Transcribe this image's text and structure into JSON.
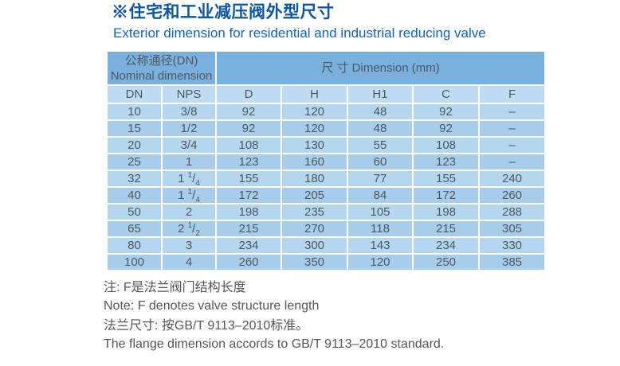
{
  "header": {
    "title_zh": "※住宅和工业减压阀外型尺寸",
    "title_en": "Exterior dimension for residential and industrial reducing valve"
  },
  "table": {
    "group_headers": {
      "nominal_zh": "公称通径(DN)",
      "nominal_en": "Nominal dimension",
      "dimension": "尺 寸 Dimension  (mm)"
    },
    "columns": [
      "DN",
      "NPS",
      "D",
      "H",
      "H1",
      "C",
      "F"
    ],
    "rows": [
      [
        "10",
        "3/8",
        "92",
        "120",
        "48",
        "92",
        "–"
      ],
      [
        "15",
        "1/2",
        "92",
        "120",
        "48",
        "92",
        "–"
      ],
      [
        "20",
        "3/4",
        "108",
        "130",
        "55",
        "108",
        "–"
      ],
      [
        "25",
        "1",
        "123",
        "160",
        "60",
        "123",
        "–"
      ],
      [
        "32",
        "1 1/4",
        "155",
        "180",
        "77",
        "155",
        "240"
      ],
      [
        "40",
        "1 1/4",
        "172",
        "205",
        "84",
        "172",
        "260"
      ],
      [
        "50",
        "2",
        "198",
        "235",
        "105",
        "198",
        "288"
      ],
      [
        "65",
        "2 1/2",
        "215",
        "270",
        "118",
        "215",
        "305"
      ],
      [
        "80",
        "3",
        "234",
        "300",
        "143",
        "234",
        "330"
      ],
      [
        "100",
        "4",
        "260",
        "350",
        "120",
        "250",
        "385"
      ]
    ]
  },
  "notes": [
    "注: F是法兰阀门结构长度",
    "Note: F denotes valve structure length",
    "法兰尺寸: 按GB/T 9113–2010标准。",
    "The flange dimension accords to GB/T 9113–2010 standard."
  ],
  "colors": {
    "title_blue": "#0c56a6",
    "subtitle_blue": "#1363b7",
    "group_header_bg": "#79b0de",
    "sub_header_bg": "#c0dcf2",
    "row_light_bg": "#b4d6ee",
    "row_dark_bg": "#a8cdea",
    "table_text": "#4e5860",
    "note_text": "#55575a",
    "grid_line": "#ffffff"
  }
}
